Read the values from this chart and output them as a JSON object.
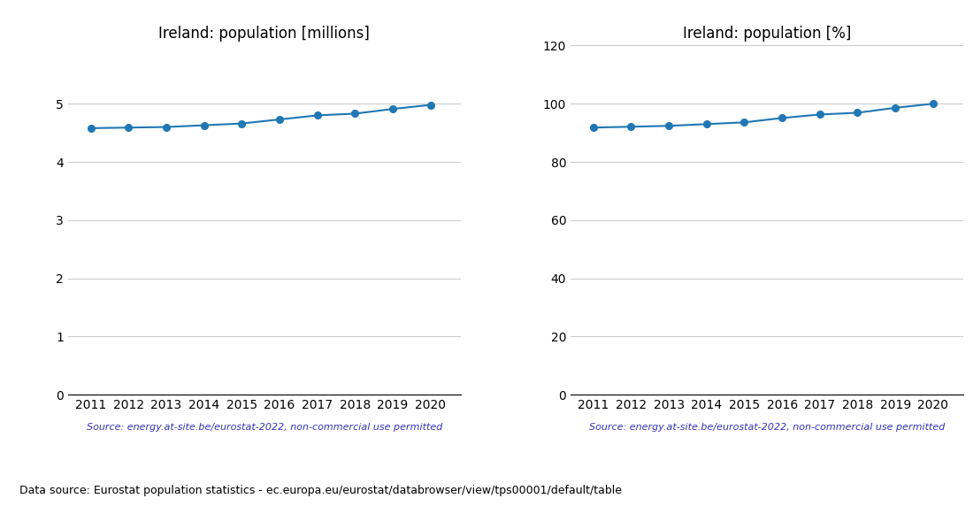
{
  "years": [
    2011,
    2012,
    2013,
    2014,
    2015,
    2016,
    2017,
    2018,
    2019,
    2020
  ],
  "pop_millions": [
    4.58,
    4.59,
    4.6,
    4.63,
    4.66,
    4.73,
    4.8,
    4.83,
    4.91,
    4.98
  ],
  "pop_percent": [
    91.8,
    92.1,
    92.4,
    93.0,
    93.6,
    95.1,
    96.3,
    96.9,
    98.6,
    100.0
  ],
  "title_millions": "Ireland: population [millions]",
  "title_percent": "Ireland: population [%]",
  "source_text": "Source: energy.at-site.be/eurostat-2022, non-commercial use permitted",
  "footer_text": "Data source: Eurostat population statistics - ec.europa.eu/eurostat/databrowser/view/tps00001/default/table",
  "line_color": "#1f77b4",
  "source_color": "#3333bb",
  "footer_color": "#000000",
  "ylim_millions": [
    0,
    6
  ],
  "ylim_percent": [
    0,
    120
  ],
  "yticks_millions": [
    0,
    1,
    2,
    3,
    4,
    5
  ],
  "yticks_percent": [
    0,
    20,
    40,
    60,
    80,
    100,
    120
  ],
  "xticks": [
    2011,
    2012,
    2013,
    2014,
    2015,
    2016,
    2017,
    2018,
    2019,
    2020
  ],
  "xlim": [
    2010.4,
    2020.8
  ]
}
